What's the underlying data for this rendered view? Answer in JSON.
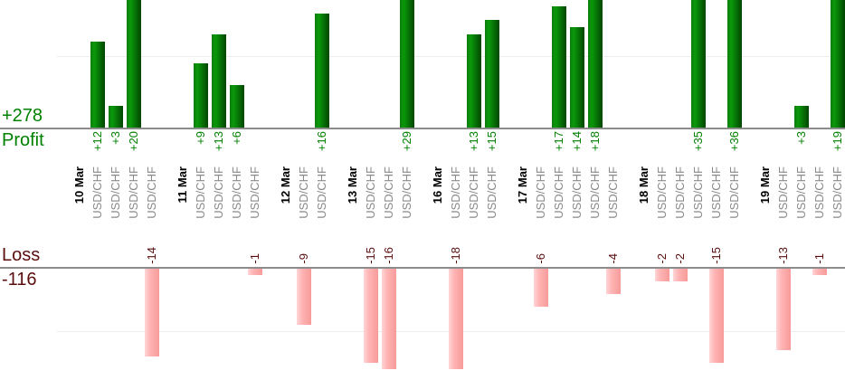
{
  "summary": {
    "profit_total": "+278",
    "profit_label": "Profit",
    "loss_label": "Loss",
    "loss_total": "-116"
  },
  "colors": {
    "profit_text": "#008000",
    "loss_text": "#5a0e0e",
    "profit_bar_gradient": [
      "#0e7a0e",
      "#0a9a0a",
      "#024602"
    ],
    "loss_bar_gradient": [
      "#ffd6d6",
      "#ffb5b5",
      "#f79a9a"
    ],
    "date_text": "#000000",
    "instrument_text": "#8a8a8a",
    "axis_line": "#8c8c8c",
    "gridline": "#ededed"
  },
  "chart_data": {
    "type": "bar",
    "instrument": "USD/CHF",
    "groups": [
      {
        "date": "10 Mar",
        "trades": [
          12,
          3,
          20,
          -14
        ]
      },
      {
        "date": "11 Mar",
        "trades": [
          9,
          13,
          6,
          -1
        ]
      },
      {
        "date": "12 Mar",
        "trades": [
          -9,
          16
        ]
      },
      {
        "date": "13 Mar",
        "trades": [
          -15,
          -16,
          29
        ]
      },
      {
        "date": "16 Mar",
        "trades": [
          -18,
          13,
          15
        ]
      },
      {
        "date": "17 Mar",
        "trades": [
          -6,
          17,
          14,
          18,
          -4
        ]
      },
      {
        "date": "18 Mar",
        "trades": [
          -2,
          -2,
          35,
          -15,
          36
        ]
      },
      {
        "date": "19 Mar",
        "trades": [
          -13,
          3,
          -1,
          19
        ]
      }
    ],
    "profit_total": 278,
    "loss_total": -116,
    "profit_axis": {
      "baseline": 0,
      "gridlines": [
        10
      ],
      "visible_range": [
        0,
        17.8
      ],
      "clipped_bars_at_top": [
        20,
        29,
        35,
        36,
        18,
        19
      ]
    },
    "loss_axis": {
      "baseline": 0,
      "gridlines": [
        -10
      ],
      "visible_range": [
        -16,
        0
      ],
      "clipped_bars_at_bottom": [
        -18
      ]
    },
    "legend": "none",
    "value_label_format": "signed integer, rotated 90deg"
  }
}
